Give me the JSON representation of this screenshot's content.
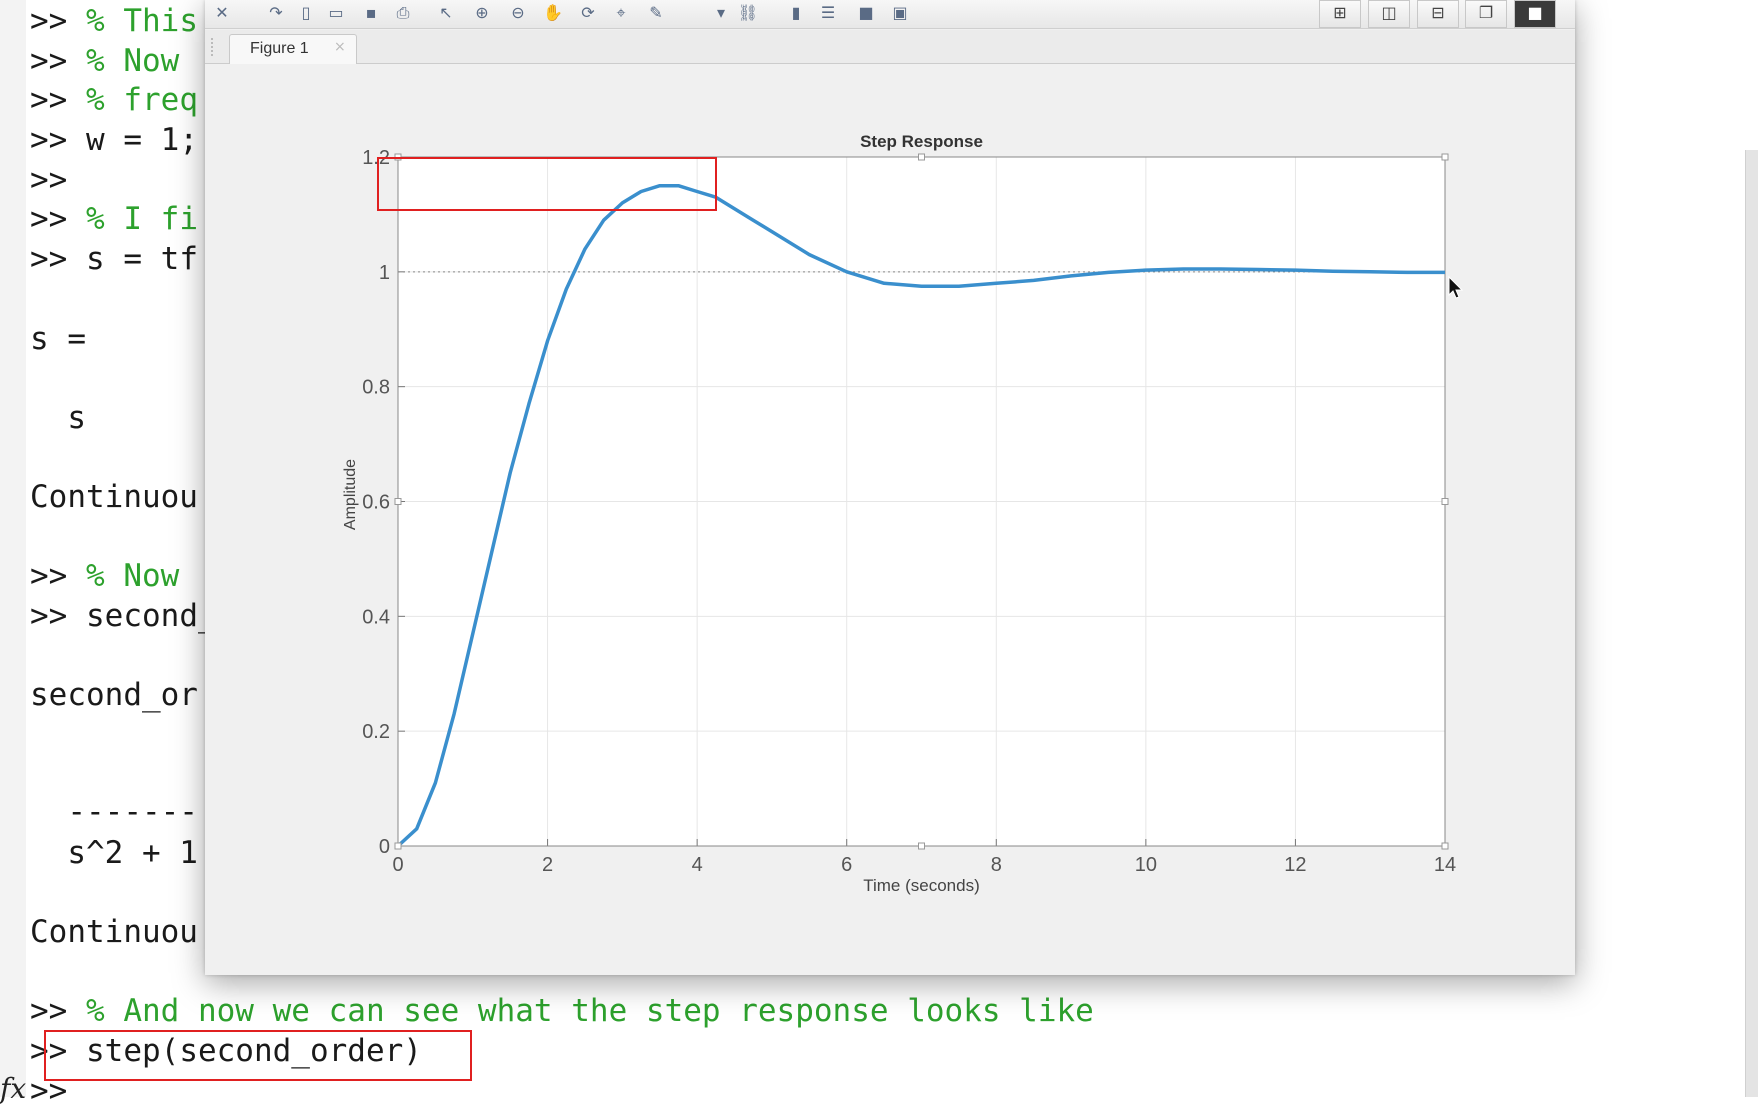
{
  "console": {
    "lines": [
      {
        "prompt": ">>",
        "code": "",
        "comment": "% This"
      },
      {
        "prompt": ">>",
        "code": "",
        "comment": "% Now"
      },
      {
        "prompt": ">>",
        "code": "",
        "comment": "% freq"
      },
      {
        "prompt": ">>",
        "code": "w = 1;",
        "comment": ""
      },
      {
        "prompt": ">>",
        "code": "",
        "comment": ""
      },
      {
        "prompt": ">>",
        "code": "",
        "comment": "% I fi"
      },
      {
        "prompt": ">>",
        "code": "s = tf",
        "comment": ""
      },
      {
        "prompt": "",
        "code": "s =",
        "comment": ""
      },
      {
        "prompt": "",
        "code": "  s",
        "comment": ""
      },
      {
        "prompt": "",
        "code": "Continuou",
        "comment": ""
      },
      {
        "prompt": ">>",
        "code": "",
        "comment": "% Now"
      },
      {
        "prompt": ">>",
        "code": "second_",
        "comment": ""
      },
      {
        "prompt": "",
        "code": "second_or",
        "comment": ""
      },
      {
        "prompt": "",
        "code": "  -------",
        "comment": ""
      },
      {
        "prompt": "",
        "code": "  s^2 + 1",
        "comment": ""
      },
      {
        "prompt": "",
        "code": "Continuou",
        "comment": ""
      },
      {
        "prompt": ">>",
        "code": "",
        "comment": "% And now we can see what the step response looks like"
      },
      {
        "prompt": ">>",
        "code": "step(second_order)",
        "comment": ""
      },
      {
        "prompt": ">>",
        "code": "",
        "comment": ""
      }
    ],
    "fx_symbol": "fx"
  },
  "figure": {
    "tab_label": "Figure 1",
    "tab_close": "×",
    "toolbar_icons": [
      "close-undock-icon",
      "redo-icon",
      "new-figure-icon",
      "open-icon",
      "save-icon",
      "print-icon",
      "select-arrow-icon",
      "zoom-in-icon",
      "zoom-out-icon",
      "pan-hand-icon",
      "rotate-icon",
      "data-cursor-icon",
      "brush-icon",
      "dropdown-icon",
      "link-plot-icon",
      "colorbar-icon",
      "legend-icon",
      "hide-plot-tools-icon",
      "show-plot-tools-icon"
    ],
    "layout_buttons": [
      "tile-grid-icon",
      "left-right-icon",
      "top-bottom-icon",
      "float-icon",
      "maximize-icon"
    ]
  },
  "chart_data": {
    "type": "line",
    "title": "Step Response",
    "xlabel": "Time (seconds)",
    "ylabel": "Amplitude",
    "xlim": [
      0,
      14
    ],
    "ylim": [
      0,
      1.2
    ],
    "xticks": [
      "0",
      "2",
      "4",
      "6",
      "8",
      "10",
      "12",
      "14"
    ],
    "yticks": [
      "0",
      "0.2",
      "0.4",
      "0.6",
      "0.8",
      "1",
      "1.2"
    ],
    "grid": true,
    "reference_line": 1,
    "series": [
      {
        "color": "#3a8fcd",
        "x": [
          0,
          0.25,
          0.5,
          0.75,
          1,
          1.25,
          1.5,
          1.75,
          2,
          2.25,
          2.5,
          2.75,
          3,
          3.25,
          3.5,
          3.75,
          4,
          4.25,
          4.5,
          4.75,
          5,
          5.5,
          6,
          6.5,
          7,
          7.5,
          8,
          8.5,
          9,
          9.5,
          10,
          10.5,
          11,
          11.5,
          12,
          12.5,
          13,
          13.5,
          14
        ],
        "y": [
          0,
          0.03,
          0.11,
          0.23,
          0.37,
          0.51,
          0.65,
          0.77,
          0.88,
          0.97,
          1.04,
          1.09,
          1.12,
          1.14,
          1.15,
          1.15,
          1.14,
          1.13,
          1.11,
          1.09,
          1.07,
          1.03,
          1.0,
          0.98,
          0.975,
          0.975,
          0.98,
          0.985,
          0.993,
          0.999,
          1.003,
          1.005,
          1.005,
          1.004,
          1.003,
          1.001,
          1.0,
          0.999,
          0.999
        ]
      }
    ]
  }
}
